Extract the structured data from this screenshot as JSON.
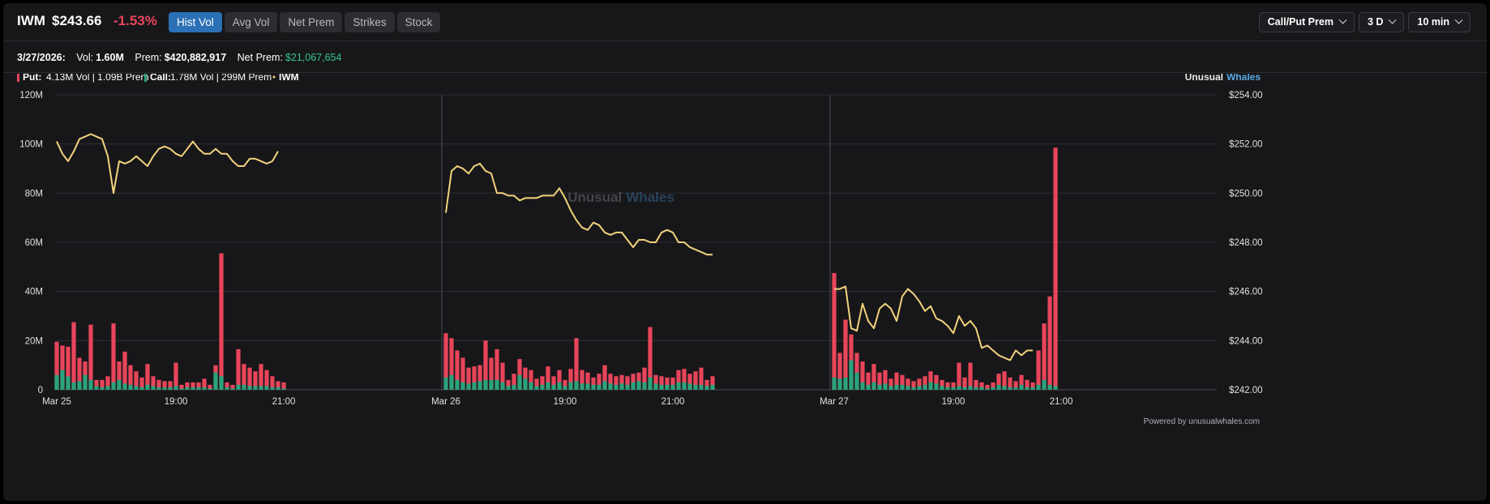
{
  "header": {
    "ticker": "IWM",
    "price": "$243.66",
    "change": "-1.53%",
    "tabs": [
      {
        "label": "Hist Vol",
        "active": true
      },
      {
        "label": "Avg Vol",
        "active": false
      },
      {
        "label": "Net Prem",
        "active": false
      },
      {
        "label": "Strikes",
        "active": false
      },
      {
        "label": "Stock",
        "active": false
      }
    ],
    "dropdowns": {
      "metric": "Call/Put Prem",
      "range": "3 D",
      "interval": "10 min"
    }
  },
  "info": {
    "date": "3/27/2026:",
    "vol_label": "Vol:",
    "vol_value": "1.60M",
    "prem_label": "Prem:",
    "prem_value": "$420,882,917",
    "net_label": "Net Prem:",
    "net_value": "$21,067,654"
  },
  "legend": {
    "put_label": "Put:",
    "put_detail": "4.13M Vol | 1.09B Prem",
    "call_label": "Call:",
    "call_detail": "1.78M Vol | 299M Prem",
    "iwm_label": "IWM"
  },
  "brand": {
    "part1": "Unusual",
    "part2": "Whales"
  },
  "watermark": {
    "part1": "Unusual",
    "part2": "Whales"
  },
  "footer": "Powered by unusualwhales.com",
  "colors": {
    "put": "#e8455a",
    "call": "#2aa37c",
    "price_line": "#f2d27c",
    "accent": "#2c70b5",
    "brand_blue": "#5aa8e6"
  },
  "chart_data": {
    "type": "bar",
    "y_left": {
      "min": 0,
      "max": 120,
      "unit": "M",
      "ticks": [
        "0",
        "20M",
        "40M",
        "60M",
        "80M",
        "100M",
        "120M"
      ]
    },
    "y_right": {
      "min": 242,
      "max": 254,
      "ticks": [
        "$242.00",
        "$244.00",
        "$246.00",
        "$248.00",
        "$250.00",
        "$252.00",
        "$254.00"
      ]
    },
    "x_ticks": [
      {
        "label": "Mar 25",
        "session": 0,
        "index": 0
      },
      {
        "label": "19:00",
        "session": 0,
        "index": 21
      },
      {
        "label": "21:00",
        "session": 0,
        "index": 40
      },
      {
        "label": "Mar 26",
        "session": 1,
        "index": 0
      },
      {
        "label": "19:00",
        "session": 1,
        "index": 21
      },
      {
        "label": "21:00",
        "session": 1,
        "index": 40
      },
      {
        "label": "Mar 27",
        "session": 2,
        "index": 0
      },
      {
        "label": "19:00",
        "session": 2,
        "index": 21
      },
      {
        "label": "21:00",
        "session": 2,
        "index": 40
      }
    ],
    "grid": true,
    "sessions": [
      {
        "date": "Mar 25",
        "put": [
          19.5,
          18,
          17.5,
          27.5,
          13,
          11.5,
          26.5,
          4,
          4,
          5.5,
          27,
          11.5,
          15.5,
          10,
          7.5,
          5,
          10.5,
          5.5,
          4,
          3.5,
          3.5,
          11,
          2,
          3,
          3,
          3,
          4.5,
          2,
          10,
          55.5,
          3,
          2,
          16.5,
          10.5,
          9,
          7.5,
          10.5,
          8,
          5.5,
          3.5,
          3
        ],
        "call": [
          6,
          8,
          5.5,
          3,
          3.5,
          6,
          4,
          1.5,
          1,
          1.5,
          3,
          4,
          2.5,
          2,
          1.5,
          1,
          2,
          1.5,
          1,
          1,
          1,
          1.5,
          0.5,
          1,
          1,
          1,
          1,
          0.5,
          7,
          5.5,
          1,
          0.5,
          2,
          2,
          1.5,
          1.5,
          1.5,
          1.5,
          1,
          1,
          0.5
        ],
        "price": [
          252.1,
          251.6,
          251.3,
          251.7,
          252.2,
          252.3,
          252.4,
          252.3,
          252.2,
          251.5,
          250.0,
          251.3,
          251.2,
          251.3,
          251.5,
          251.3,
          251.1,
          251.5,
          251.8,
          251.9,
          251.8,
          251.6,
          251.5,
          251.8,
          252.1,
          251.8,
          251.6,
          251.6,
          251.8,
          251.6,
          251.6,
          251.3,
          251.1,
          251.1,
          251.4,
          251.4,
          251.3,
          251.2,
          251.3,
          251.7
        ]
      },
      {
        "date": "Mar 26",
        "put": [
          23,
          21,
          16,
          13,
          9,
          9.5,
          10,
          20,
          13,
          16.5,
          11,
          4,
          6.5,
          12.5,
          9,
          8,
          4.5,
          5.5,
          9.5,
          5.5,
          8,
          4,
          8.5,
          21,
          8,
          7,
          5,
          6.5,
          10,
          6.5,
          5.5,
          6,
          5.5,
          6.5,
          7,
          9,
          25.5,
          6,
          5.5,
          5,
          5,
          8,
          8.5,
          6.5,
          7.5,
          9,
          4,
          5.5
        ],
        "call": [
          5,
          6,
          4,
          3,
          2.5,
          3,
          3.5,
          4,
          4,
          4,
          3,
          1.5,
          2,
          6,
          4.5,
          3,
          1.5,
          2,
          3,
          2,
          3,
          1.5,
          3,
          3.5,
          2.5,
          2.5,
          2,
          2,
          3.5,
          2.5,
          2,
          2.5,
          2,
          3,
          3.5,
          3,
          5,
          2.5,
          2,
          2,
          2,
          3,
          3,
          2.5,
          2,
          2,
          1.5,
          2
        ],
        "price": [
          249.2,
          250.9,
          251.1,
          251.0,
          250.8,
          251.1,
          251.2,
          250.9,
          250.8,
          250.0,
          250.0,
          249.9,
          249.9,
          249.7,
          249.8,
          249.8,
          249.8,
          249.9,
          249.9,
          249.9,
          250.2,
          249.8,
          249.3,
          248.9,
          248.6,
          248.5,
          248.8,
          248.7,
          248.4,
          248.3,
          248.4,
          248.4,
          248.1,
          247.8,
          248.1,
          248.1,
          248.0,
          248.0,
          248.4,
          248.5,
          248.4,
          248.0,
          248.0,
          247.8,
          247.7,
          247.6,
          247.5,
          247.5
        ]
      },
      {
        "date": "Mar 27",
        "put": [
          47.5,
          15,
          28.5,
          22.5,
          15,
          11.5,
          7,
          10.5,
          7,
          8,
          4.5,
          7,
          6,
          4.5,
          3.5,
          4.5,
          5.5,
          7.5,
          6,
          4,
          3,
          3,
          11,
          5,
          11,
          4,
          3,
          2,
          3,
          6.5,
          7.5,
          5,
          3.5,
          6,
          4,
          3,
          16,
          27,
          38,
          98.5
        ],
        "call": [
          5,
          4.5,
          5,
          12,
          7,
          3,
          2,
          3,
          2,
          2.5,
          1.5,
          2,
          2,
          1.5,
          1,
          1.5,
          2,
          3,
          2.5,
          1.5,
          1,
          1,
          1.5,
          1,
          1.5,
          1,
          1,
          0.5,
          1,
          2,
          1.5,
          1,
          1,
          2,
          1,
          1,
          2,
          4,
          2,
          1.5
        ],
        "price": [
          246.1,
          246.1,
          246.2,
          244.5,
          244.4,
          245.5,
          244.8,
          244.5,
          245.3,
          245.5,
          245.3,
          244.8,
          245.8,
          246.1,
          245.9,
          245.6,
          245.2,
          245.4,
          244.9,
          244.8,
          244.6,
          244.3,
          245.0,
          244.6,
          244.8,
          244.5,
          243.7,
          243.8,
          243.6,
          243.4,
          243.3,
          243.2,
          243.6,
          243.4,
          243.6,
          243.6
        ]
      }
    ]
  }
}
